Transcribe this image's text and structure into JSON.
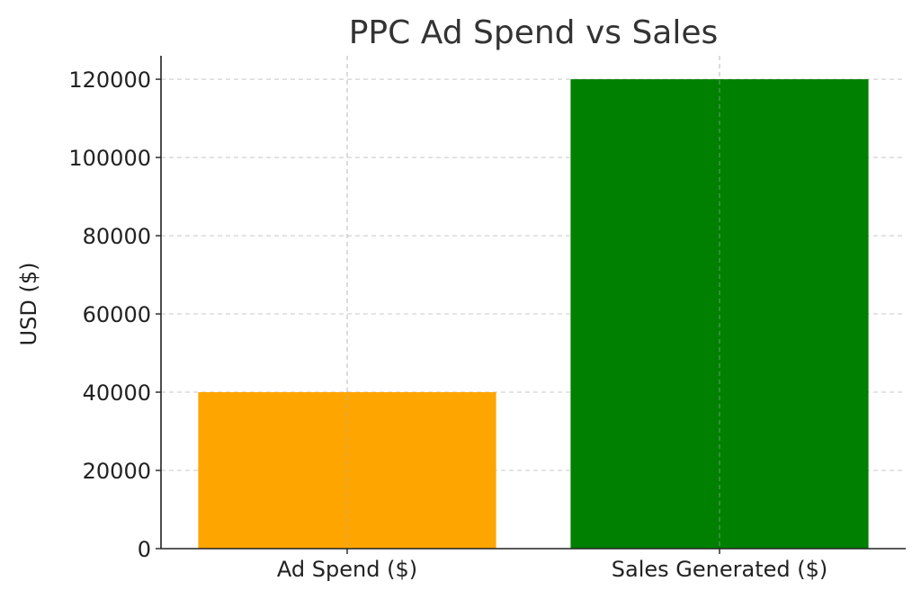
{
  "chart_data": {
    "type": "bar",
    "title": "PPC Ad Spend vs Sales",
    "xlabel": "",
    "ylabel": "USD ($)",
    "categories": [
      "Ad Spend ($)",
      "Sales Generated ($)"
    ],
    "values": [
      40000,
      120000
    ],
    "colors": [
      "#ffa500",
      "#008000"
    ],
    "ylim": [
      0,
      126000
    ],
    "yticks": [
      0,
      20000,
      40000,
      60000,
      80000,
      100000,
      120000
    ],
    "ytick_labels": [
      "0",
      "20000",
      "40000",
      "60000",
      "80000",
      "100000",
      "120000"
    ],
    "grid": true,
    "grid_style": "dashed",
    "legend": "none"
  }
}
